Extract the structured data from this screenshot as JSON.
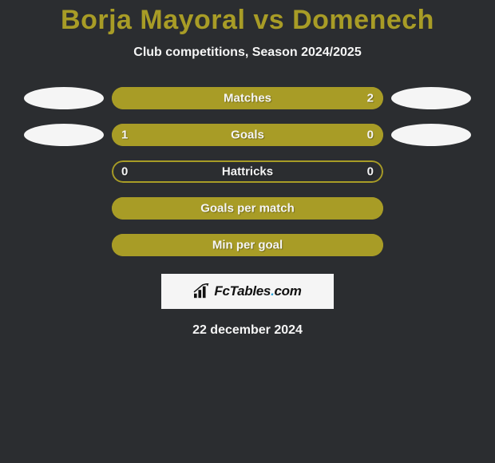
{
  "background_color": "#2b2d30",
  "text_color": "#f5f5f5",
  "title_color": "#a89c26",
  "accent_color": "#a89c26",
  "oval_white": "#f5f5f5",
  "oval_dark": "#2b2d30",
  "bar_bg": "#2b2d30",
  "logo_bg": "#f5f5f5",
  "logo_text_color": "#111111",
  "title": "Borja Mayoral vs Domenech",
  "subtitle": "Club competitions, Season 2024/2025",
  "date": "22 december 2024",
  "logo_text": "FcTables.com",
  "logo_dot_color": "#2fa8e0",
  "rows": [
    {
      "label": "Matches",
      "left_val": "",
      "right_val": "2",
      "left_pct": 0,
      "right_pct": 100,
      "show_left_oval": true,
      "show_right_oval": true,
      "left_oval_color": "#f5f5f5",
      "right_oval_color": "#f5f5f5"
    },
    {
      "label": "Goals",
      "left_val": "1",
      "right_val": "0",
      "left_pct": 77,
      "right_pct": 23,
      "show_left_oval": true,
      "show_right_oval": true,
      "left_oval_color": "#f5f5f5",
      "right_oval_color": "#f5f5f5"
    },
    {
      "label": "Hattricks",
      "left_val": "0",
      "right_val": "0",
      "left_pct": 0,
      "right_pct": 0,
      "show_left_oval": false,
      "show_right_oval": false
    },
    {
      "label": "Goals per match",
      "left_val": "",
      "right_val": "",
      "left_pct": 100,
      "right_pct": 0,
      "show_left_oval": false,
      "show_right_oval": false
    },
    {
      "label": "Min per goal",
      "left_val": "",
      "right_val": "",
      "left_pct": 100,
      "right_pct": 0,
      "show_left_oval": false,
      "show_right_oval": false
    }
  ]
}
